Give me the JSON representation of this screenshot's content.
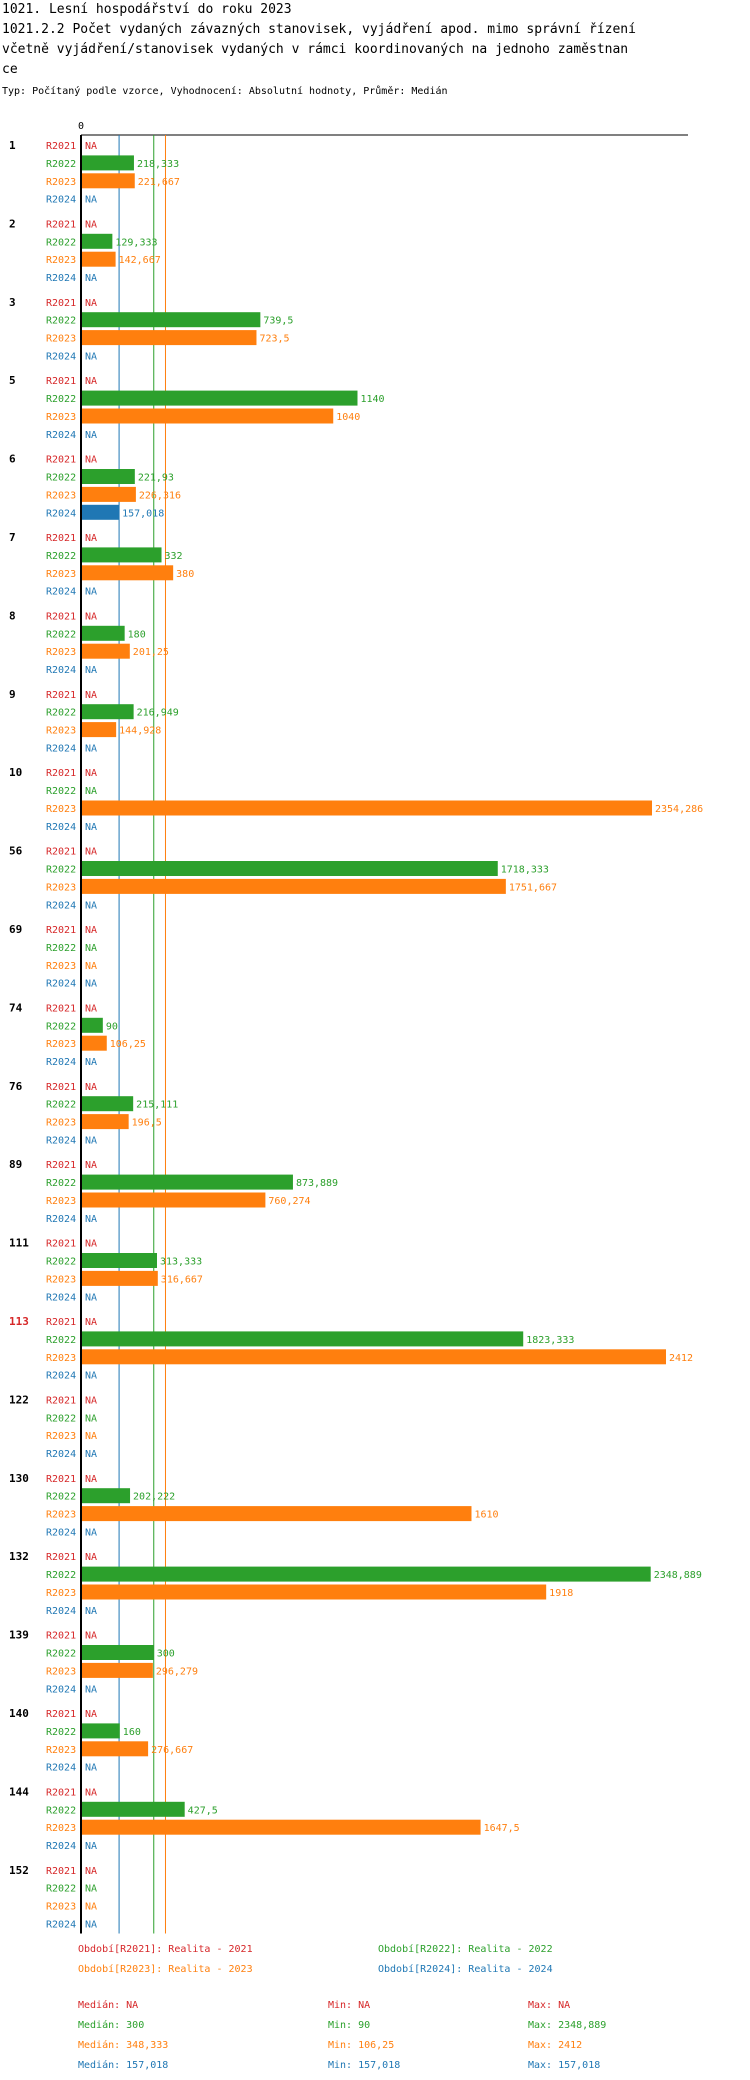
{
  "header": {
    "line1": "1021. Lesní hospodářství do roku 2023",
    "line2": "1021.2.2 Počet vydaných závazných stanovisek, vyjádření apod. mimo správní řízení",
    "line3": " včetně vyjádření/stanovisek vydaných v rámci koordinovaných na jednoho zaměstnan",
    "line4": "ce",
    "info": "Typ: Počítaný podle vzorce, Vyhodnocení: Absolutní hodnoty, Průměr: Medián"
  },
  "colors": {
    "R2021": "#d62728",
    "R2022": "#2ca02c",
    "R2023": "#ff7f0e",
    "R2024": "#1f77b4"
  },
  "chart_data": {
    "type": "bar",
    "orientation": "horizontal",
    "axis_zero_label": "0",
    "x_max": 2412,
    "series_names": [
      "R2021",
      "R2022",
      "R2023",
      "R2024"
    ],
    "na_label": "NA",
    "highlight_category": "113",
    "median_lines": {
      "R2022": 300,
      "R2023": 348.333,
      "R2024": 157.018
    },
    "categories": [
      {
        "id": "1",
        "values": [
          null,
          218.333,
          221.667,
          null
        ]
      },
      {
        "id": "2",
        "values": [
          null,
          129.333,
          142.667,
          null
        ]
      },
      {
        "id": "3",
        "values": [
          null,
          739.5,
          723.5,
          null
        ]
      },
      {
        "id": "5",
        "values": [
          null,
          1140,
          1040,
          null
        ]
      },
      {
        "id": "6",
        "values": [
          null,
          221.93,
          226.316,
          157.018
        ]
      },
      {
        "id": "7",
        "values": [
          null,
          332,
          380,
          null
        ]
      },
      {
        "id": "8",
        "values": [
          null,
          180,
          201.25,
          null
        ]
      },
      {
        "id": "9",
        "values": [
          null,
          216.949,
          144.928,
          null
        ]
      },
      {
        "id": "10",
        "values": [
          null,
          null,
          2354.286,
          null
        ]
      },
      {
        "id": "56",
        "values": [
          null,
          1718.333,
          1751.667,
          null
        ]
      },
      {
        "id": "69",
        "values": [
          null,
          null,
          null,
          null
        ]
      },
      {
        "id": "74",
        "values": [
          null,
          90,
          106.25,
          null
        ]
      },
      {
        "id": "76",
        "values": [
          null,
          215.111,
          196.5,
          null
        ]
      },
      {
        "id": "89",
        "values": [
          null,
          873.889,
          760.274,
          null
        ]
      },
      {
        "id": "111",
        "values": [
          null,
          313.333,
          316.667,
          null
        ]
      },
      {
        "id": "113",
        "values": [
          null,
          1823.333,
          2412,
          null
        ]
      },
      {
        "id": "122",
        "values": [
          null,
          null,
          null,
          null
        ]
      },
      {
        "id": "130",
        "values": [
          null,
          202.222,
          1610,
          null
        ]
      },
      {
        "id": "132",
        "values": [
          null,
          2348.889,
          1918,
          null
        ]
      },
      {
        "id": "139",
        "values": [
          null,
          300,
          296.279,
          null
        ]
      },
      {
        "id": "140",
        "values": [
          null,
          160,
          276.667,
          null
        ]
      },
      {
        "id": "144",
        "values": [
          null,
          427.5,
          1647.5,
          null
        ]
      },
      {
        "id": "152",
        "values": [
          null,
          null,
          null,
          null
        ]
      }
    ]
  },
  "legend": [
    {
      "text": "Období[R2021]: Realita - 2021",
      "key": "R2021"
    },
    {
      "text": "Období[R2022]: Realita - 2022",
      "key": "R2022"
    },
    {
      "text": "Období[R2023]: Realita - 2023",
      "key": "R2023"
    },
    {
      "text": "Období[R2024]: Realita - 2024",
      "key": "R2024"
    }
  ],
  "stats": [
    {
      "key": "R2021",
      "median": "Medián: NA",
      "min": "Min: NA",
      "max": "Max: NA"
    },
    {
      "key": "R2022",
      "median": "Medián: 300",
      "min": "Min: 90",
      "max": "Max: 2348,889"
    },
    {
      "key": "R2023",
      "median": "Medián: 348,333",
      "min": "Min: 106,25",
      "max": "Max: 2412"
    },
    {
      "key": "R2024",
      "median": "Medián: 157,018",
      "min": "Min: 157,018",
      "max": "Max: 157,018"
    }
  ]
}
